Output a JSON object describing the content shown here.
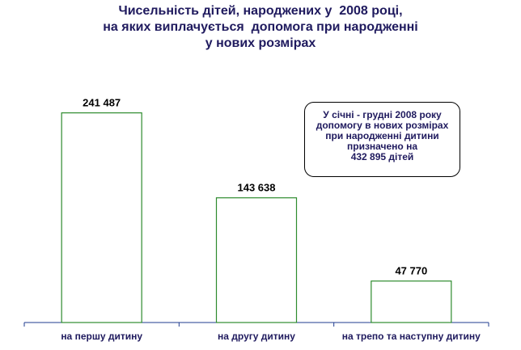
{
  "title": {
    "line1": "Чисельність дітей, народжених у  2008 році,",
    "line2": "на яких виплачується  допомога при народженні",
    "line3": "у нових розмірах"
  },
  "callout": {
    "line1": "У січні - грудні 2008 року",
    "line2": "допомогу в нових розмірах",
    "line3": "при народженні дитини",
    "line4": "призначено на",
    "line5": "432 895 дітей"
  },
  "colors": {
    "bar_stroke": "#2e8b2e",
    "bar_fill": "#ffffff",
    "axis": "#1f3b8f",
    "text": "#1f1a5e"
  },
  "chart_data": {
    "type": "bar",
    "title": "Чисельність дітей, народжених у  2008 році, на яких виплачується  допомога при народженні у нових розмірах",
    "categories": [
      "на першу дитину",
      "на другу дитину",
      "на трепо та наступну дитину"
    ],
    "values": [
      241487,
      143638,
      47770
    ],
    "value_labels": [
      "241 487",
      "143 638",
      "47 770"
    ],
    "ylim": [
      0,
      270000
    ],
    "grid": false,
    "legend": "none"
  }
}
